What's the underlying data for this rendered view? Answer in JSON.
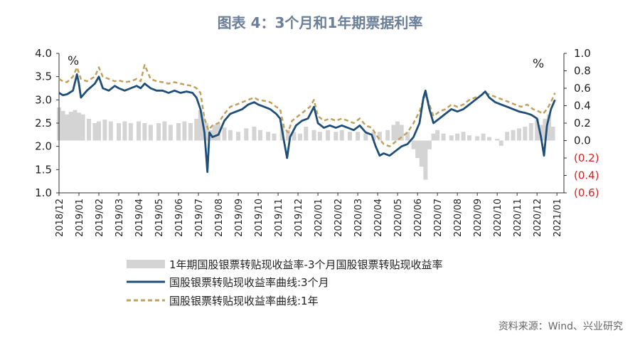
{
  "title": "图表 4：3个月和1年期票据利率",
  "source": "资料来源：Wind、兴业研究",
  "colors": {
    "spread": "#d4d4d4",
    "m3": "#1f4e79",
    "y1": "#c2a05e",
    "negative_tick": "#d62020"
  },
  "chart_data": {
    "type": "line",
    "title": "图表 4：3个月和1年期票据利率",
    "left_unit": "%",
    "right_unit": "%",
    "left_axis": {
      "min": 1.0,
      "max": 4.0,
      "ticks": [
        "1.0",
        "1.5",
        "2.0",
        "2.5",
        "3.0",
        "3.5",
        "4.0"
      ]
    },
    "right_axis": {
      "min": -0.6,
      "max": 1.0,
      "ticks": [
        "(0.6)",
        "(0.4)",
        "(0.2)",
        "0.0",
        "0.2",
        "0.4",
        "0.6",
        "0.8",
        "1.0"
      ]
    },
    "x_ticks": [
      "2018/12",
      "2019/01",
      "2019/02",
      "2019/03",
      "2019/04",
      "2019/05",
      "2019/06",
      "2019/07",
      "2019/08",
      "2019/09",
      "2019/10",
      "2019/11",
      "2019/12",
      "2020/01",
      "2020/02",
      "2020/03",
      "2020/04",
      "2020/05",
      "2020/06",
      "2020/07",
      "2020/08",
      "2020/09",
      "2020/10",
      "2020/11",
      "2020/12",
      "2021/01"
    ],
    "x_index_units": "months since first tick",
    "series": [
      {
        "name": "1年期国股银票转贴现收益率-3个月国股银票转贴现收益率",
        "kind": "bar",
        "axis": "right",
        "points": [
          [
            0.0,
            0.38
          ],
          [
            0.2,
            0.34
          ],
          [
            0.4,
            0.3
          ],
          [
            0.6,
            0.33
          ],
          [
            0.8,
            0.35
          ],
          [
            1.0,
            0.32
          ],
          [
            1.2,
            0.3
          ],
          [
            1.5,
            0.25
          ],
          [
            1.8,
            0.2
          ],
          [
            2.0,
            0.22
          ],
          [
            2.3,
            0.24
          ],
          [
            2.6,
            0.22
          ],
          [
            3.0,
            0.2
          ],
          [
            3.3,
            0.22
          ],
          [
            3.6,
            0.2
          ],
          [
            4.0,
            0.22
          ],
          [
            4.3,
            0.2
          ],
          [
            4.6,
            0.18
          ],
          [
            5.0,
            0.2
          ],
          [
            5.3,
            0.22
          ],
          [
            5.6,
            0.18
          ],
          [
            6.0,
            0.2
          ],
          [
            6.3,
            0.22
          ],
          [
            6.6,
            0.2
          ],
          [
            6.9,
            0.25
          ],
          [
            7.1,
            0.35
          ],
          [
            7.2,
            0.28
          ],
          [
            7.4,
            0.2
          ],
          [
            7.6,
            0.12
          ],
          [
            7.8,
            0.18
          ],
          [
            8.0,
            0.2
          ],
          [
            8.3,
            0.15
          ],
          [
            8.6,
            0.12
          ],
          [
            9.0,
            0.1
          ],
          [
            9.4,
            0.14
          ],
          [
            9.8,
            0.16
          ],
          [
            10.1,
            0.12
          ],
          [
            10.5,
            0.1
          ],
          [
            10.8,
            0.08
          ],
          [
            11.2,
            0.18
          ],
          [
            11.5,
            0.12
          ],
          [
            11.8,
            0.1
          ],
          [
            12.1,
            0.08
          ],
          [
            12.4,
            0.16
          ],
          [
            12.8,
            0.12
          ],
          [
            13.1,
            0.1
          ],
          [
            13.5,
            0.12
          ],
          [
            13.9,
            0.1
          ],
          [
            14.2,
            0.12
          ],
          [
            14.6,
            0.1
          ],
          [
            15.0,
            0.1
          ],
          [
            15.4,
            0.08
          ],
          [
            15.8,
            0.1
          ],
          [
            16.1,
            0.1
          ],
          [
            16.5,
            0.12
          ],
          [
            16.8,
            0.18
          ],
          [
            17.0,
            0.22
          ],
          [
            17.2,
            0.18
          ],
          [
            17.5,
            0.1
          ],
          [
            17.8,
            -0.1
          ],
          [
            18.0,
            -0.2
          ],
          [
            18.2,
            -0.3
          ],
          [
            18.4,
            -0.45
          ],
          [
            18.6,
            -0.1
          ],
          [
            18.8,
            0.08
          ],
          [
            19.0,
            0.12
          ],
          [
            19.3,
            0.08
          ],
          [
            19.7,
            0.06
          ],
          [
            20.0,
            0.08
          ],
          [
            20.3,
            0.1
          ],
          [
            20.6,
            0.06
          ],
          [
            21.0,
            0.05
          ],
          [
            21.3,
            0.08
          ],
          [
            21.6,
            0.04
          ],
          [
            22.0,
            0.02
          ],
          [
            22.2,
            -0.06
          ],
          [
            22.5,
            0.1
          ],
          [
            22.8,
            0.12
          ],
          [
            23.1,
            0.14
          ],
          [
            23.4,
            0.16
          ],
          [
            23.7,
            0.2
          ],
          [
            24.0,
            0.25
          ],
          [
            24.2,
            0.18
          ],
          [
            24.4,
            0.25
          ],
          [
            24.6,
            0.3
          ],
          [
            24.8,
            0.16
          ]
        ]
      },
      {
        "name": "国股银票转贴现收益率曲线:3个月",
        "kind": "line",
        "axis": "left",
        "points": [
          [
            0.0,
            3.15
          ],
          [
            0.2,
            3.1
          ],
          [
            0.4,
            3.12
          ],
          [
            0.7,
            3.2
          ],
          [
            0.9,
            3.55
          ],
          [
            1.0,
            3.35
          ],
          [
            1.1,
            3.05
          ],
          [
            1.4,
            3.2
          ],
          [
            1.8,
            3.35
          ],
          [
            2.0,
            3.5
          ],
          [
            2.2,
            3.25
          ],
          [
            2.5,
            3.2
          ],
          [
            2.8,
            3.3
          ],
          [
            3.0,
            3.25
          ],
          [
            3.3,
            3.2
          ],
          [
            3.6,
            3.25
          ],
          [
            3.9,
            3.3
          ],
          [
            4.1,
            3.25
          ],
          [
            4.3,
            3.35
          ],
          [
            4.6,
            3.25
          ],
          [
            4.9,
            3.2
          ],
          [
            5.2,
            3.2
          ],
          [
            5.5,
            3.15
          ],
          [
            5.8,
            3.2
          ],
          [
            6.1,
            3.15
          ],
          [
            6.4,
            3.18
          ],
          [
            6.7,
            3.15
          ],
          [
            6.9,
            3.05
          ],
          [
            7.1,
            2.8
          ],
          [
            7.3,
            2.3
          ],
          [
            7.45,
            1.45
          ],
          [
            7.55,
            2.3
          ],
          [
            7.7,
            2.2
          ],
          [
            8.0,
            2.25
          ],
          [
            8.3,
            2.55
          ],
          [
            8.6,
            2.7
          ],
          [
            8.9,
            2.75
          ],
          [
            9.2,
            2.8
          ],
          [
            9.5,
            2.9
          ],
          [
            9.8,
            2.95
          ],
          [
            10.0,
            2.9
          ],
          [
            10.3,
            2.85
          ],
          [
            10.6,
            2.8
          ],
          [
            10.9,
            2.7
          ],
          [
            11.1,
            2.6
          ],
          [
            11.3,
            2.1
          ],
          [
            11.45,
            1.75
          ],
          [
            11.6,
            2.2
          ],
          [
            11.9,
            2.45
          ],
          [
            12.2,
            2.55
          ],
          [
            12.5,
            2.6
          ],
          [
            12.8,
            2.85
          ],
          [
            13.0,
            2.5
          ],
          [
            13.3,
            2.4
          ],
          [
            13.6,
            2.45
          ],
          [
            13.9,
            2.4
          ],
          [
            14.2,
            2.45
          ],
          [
            14.5,
            2.4
          ],
          [
            14.8,
            2.35
          ],
          [
            15.1,
            2.45
          ],
          [
            15.4,
            2.3
          ],
          [
            15.7,
            2.25
          ],
          [
            15.9,
            2.0
          ],
          [
            16.1,
            1.8
          ],
          [
            16.3,
            1.85
          ],
          [
            16.6,
            1.8
          ],
          [
            16.9,
            1.9
          ],
          [
            17.2,
            2.0
          ],
          [
            17.5,
            2.05
          ],
          [
            17.8,
            2.2
          ],
          [
            18.1,
            2.5
          ],
          [
            18.3,
            3.05
          ],
          [
            18.4,
            3.2
          ],
          [
            18.6,
            2.8
          ],
          [
            18.8,
            2.5
          ],
          [
            19.1,
            2.6
          ],
          [
            19.4,
            2.7
          ],
          [
            19.7,
            2.8
          ],
          [
            20.0,
            2.75
          ],
          [
            20.3,
            2.8
          ],
          [
            20.6,
            2.9
          ],
          [
            20.9,
            3.0
          ],
          [
            21.2,
            3.1
          ],
          [
            21.4,
            3.18
          ],
          [
            21.6,
            3.05
          ],
          [
            21.9,
            2.95
          ],
          [
            22.2,
            2.9
          ],
          [
            22.5,
            2.85
          ],
          [
            22.8,
            2.8
          ],
          [
            23.1,
            2.75
          ],
          [
            23.4,
            2.72
          ],
          [
            23.7,
            2.68
          ],
          [
            24.0,
            2.6
          ],
          [
            24.2,
            2.2
          ],
          [
            24.35,
            1.8
          ],
          [
            24.5,
            2.45
          ],
          [
            24.7,
            2.8
          ],
          [
            24.9,
            3.0
          ]
        ]
      },
      {
        "name": "国股银票转贴现收益率曲线:1年",
        "kind": "line",
        "axis": "left",
        "dashed": true,
        "points": [
          [
            0.0,
            3.45
          ],
          [
            0.2,
            3.4
          ],
          [
            0.4,
            3.38
          ],
          [
            0.7,
            3.5
          ],
          [
            0.9,
            3.7
          ],
          [
            1.1,
            3.45
          ],
          [
            1.4,
            3.4
          ],
          [
            1.8,
            3.5
          ],
          [
            2.0,
            3.7
          ],
          [
            2.2,
            3.5
          ],
          [
            2.5,
            3.45
          ],
          [
            2.8,
            3.4
          ],
          [
            3.0,
            3.42
          ],
          [
            3.3,
            3.38
          ],
          [
            3.6,
            3.4
          ],
          [
            3.9,
            3.45
          ],
          [
            4.1,
            3.4
          ],
          [
            4.3,
            3.75
          ],
          [
            4.6,
            3.45
          ],
          [
            4.9,
            3.4
          ],
          [
            5.2,
            3.38
          ],
          [
            5.5,
            3.35
          ],
          [
            5.8,
            3.38
          ],
          [
            6.1,
            3.35
          ],
          [
            6.4,
            3.32
          ],
          [
            6.7,
            3.3
          ],
          [
            6.9,
            3.25
          ],
          [
            7.1,
            3.15
          ],
          [
            7.3,
            2.6
          ],
          [
            7.5,
            2.35
          ],
          [
            7.7,
            2.45
          ],
          [
            8.0,
            2.5
          ],
          [
            8.3,
            2.7
          ],
          [
            8.6,
            2.85
          ],
          [
            8.9,
            2.9
          ],
          [
            9.2,
            2.95
          ],
          [
            9.5,
            3.0
          ],
          [
            9.8,
            3.05
          ],
          [
            10.0,
            3.0
          ],
          [
            10.3,
            2.98
          ],
          [
            10.6,
            2.95
          ],
          [
            10.9,
            2.85
          ],
          [
            11.1,
            2.8
          ],
          [
            11.3,
            2.4
          ],
          [
            11.5,
            2.3
          ],
          [
            11.7,
            2.55
          ],
          [
            12.0,
            2.65
          ],
          [
            12.3,
            2.75
          ],
          [
            12.6,
            2.85
          ],
          [
            12.8,
            3.0
          ],
          [
            13.0,
            2.65
          ],
          [
            13.3,
            2.55
          ],
          [
            13.6,
            2.6
          ],
          [
            13.9,
            2.55
          ],
          [
            14.2,
            2.6
          ],
          [
            14.5,
            2.55
          ],
          [
            14.8,
            2.5
          ],
          [
            15.1,
            2.6
          ],
          [
            15.4,
            2.45
          ],
          [
            15.7,
            2.4
          ],
          [
            16.0,
            2.2
          ],
          [
            16.3,
            2.05
          ],
          [
            16.6,
            2.0
          ],
          [
            16.9,
            2.1
          ],
          [
            17.2,
            2.2
          ],
          [
            17.5,
            2.3
          ],
          [
            17.8,
            2.5
          ],
          [
            18.1,
            2.75
          ],
          [
            18.3,
            3.0
          ],
          [
            18.4,
            3.1
          ],
          [
            18.6,
            2.9
          ],
          [
            18.8,
            2.65
          ],
          [
            19.1,
            2.75
          ],
          [
            19.4,
            2.8
          ],
          [
            19.7,
            2.9
          ],
          [
            20.0,
            2.85
          ],
          [
            20.3,
            2.9
          ],
          [
            20.6,
            3.0
          ],
          [
            20.9,
            3.05
          ],
          [
            21.2,
            3.1
          ],
          [
            21.4,
            3.15
          ],
          [
            21.7,
            3.1
          ],
          [
            22.0,
            3.05
          ],
          [
            22.3,
            3.0
          ],
          [
            22.6,
            2.95
          ],
          [
            22.9,
            2.9
          ],
          [
            23.2,
            2.85
          ],
          [
            23.5,
            2.9
          ],
          [
            23.8,
            2.8
          ],
          [
            24.1,
            2.75
          ],
          [
            24.3,
            2.7
          ],
          [
            24.5,
            2.8
          ],
          [
            24.7,
            2.95
          ],
          [
            24.9,
            3.15
          ]
        ]
      }
    ]
  }
}
